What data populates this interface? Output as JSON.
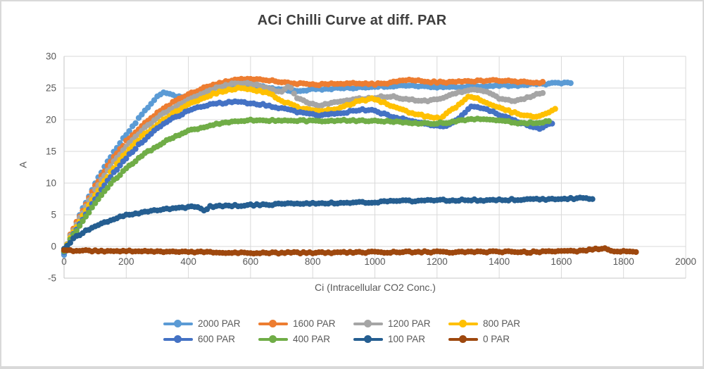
{
  "window": {
    "background": "#ffffff",
    "border_color": "#d9d9d9"
  },
  "chart_data": {
    "type": "scatter",
    "title": "ACi Chilli Curve at diff. PAR",
    "xlabel": "Ci (Intracellular CO2 Conc.)",
    "ylabel": "A",
    "xlim": [
      0,
      2000
    ],
    "ylim": [
      -5,
      30
    ],
    "x_ticks": [
      0,
      200,
      400,
      600,
      800,
      1000,
      1200,
      1400,
      1600,
      1800,
      2000
    ],
    "y_ticks": [
      -5,
      0,
      5,
      10,
      15,
      20,
      25,
      30
    ],
    "grid": true,
    "legend_position": "bottom",
    "gridline_color": "#d9d9d9",
    "axis_line_color": "#c6c6c6",
    "tick_label_color": "#595959",
    "title_color": "#3f3f3f",
    "series": [
      {
        "name": "2000 PAR",
        "color": "#5B9BD5",
        "points": [
          [
            0,
            -1.2
          ],
          [
            20,
            1.5
          ],
          [
            50,
            5
          ],
          [
            100,
            10
          ],
          [
            150,
            14.2
          ],
          [
            200,
            17.7
          ],
          [
            250,
            20.8
          ],
          [
            280,
            22.6
          ],
          [
            300,
            23.6
          ],
          [
            320,
            24.2
          ],
          [
            345,
            23.9
          ],
          [
            370,
            23.6
          ],
          [
            400,
            23.8
          ],
          [
            440,
            24.4
          ],
          [
            480,
            24.9
          ],
          [
            520,
            25.2
          ],
          [
            560,
            25.5
          ],
          [
            620,
            25.3
          ],
          [
            680,
            24.9
          ],
          [
            740,
            24.5
          ],
          [
            800,
            24.8
          ],
          [
            860,
            24.9
          ],
          [
            920,
            25.0
          ],
          [
            980,
            25.1
          ],
          [
            1040,
            25.3
          ],
          [
            1100,
            25.4
          ],
          [
            1160,
            25.2
          ],
          [
            1220,
            25.1
          ],
          [
            1280,
            25.2
          ],
          [
            1340,
            25.3
          ],
          [
            1400,
            25.4
          ],
          [
            1460,
            25.4
          ],
          [
            1520,
            25.6
          ],
          [
            1570,
            25.7
          ],
          [
            1630,
            25.8
          ]
        ]
      },
      {
        "name": "1600 PAR",
        "color": "#ED7D31",
        "points": [
          [
            0,
            -0.8
          ],
          [
            20,
            1.8
          ],
          [
            50,
            4.8
          ],
          [
            100,
            9.5
          ],
          [
            150,
            13.5
          ],
          [
            200,
            16.6
          ],
          [
            250,
            19.1
          ],
          [
            300,
            21.1
          ],
          [
            350,
            22.7
          ],
          [
            400,
            24.0
          ],
          [
            450,
            25.0
          ],
          [
            500,
            25.8
          ],
          [
            550,
            26.3
          ],
          [
            600,
            26.5
          ],
          [
            650,
            26.3
          ],
          [
            700,
            26.0
          ],
          [
            750,
            25.7
          ],
          [
            800,
            25.5
          ],
          [
            850,
            25.6
          ],
          [
            900,
            25.7
          ],
          [
            950,
            25.7
          ],
          [
            1000,
            25.6
          ],
          [
            1050,
            25.8
          ],
          [
            1110,
            26.4
          ],
          [
            1160,
            26.0
          ],
          [
            1220,
            25.9
          ],
          [
            1280,
            26.0
          ],
          [
            1340,
            26.1
          ],
          [
            1400,
            26.2
          ],
          [
            1460,
            26.0
          ],
          [
            1510,
            25.8
          ],
          [
            1545,
            25.9
          ]
        ]
      },
      {
        "name": "1200 PAR",
        "color": "#A5A5A5",
        "points": [
          [
            0,
            -0.8
          ],
          [
            20,
            1.6
          ],
          [
            50,
            4.5
          ],
          [
            100,
            9.0
          ],
          [
            150,
            12.8
          ],
          [
            200,
            15.8
          ],
          [
            250,
            18.3
          ],
          [
            300,
            20.3
          ],
          [
            350,
            21.9
          ],
          [
            400,
            23.2
          ],
          [
            450,
            24.3
          ],
          [
            500,
            25.2
          ],
          [
            550,
            25.7
          ],
          [
            580,
            25.8
          ],
          [
            620,
            25.5
          ],
          [
            660,
            24.9
          ],
          [
            700,
            24.3
          ],
          [
            725,
            25.4
          ],
          [
            750,
            23.4
          ],
          [
            790,
            22.6
          ],
          [
            820,
            22.3
          ],
          [
            860,
            22.6
          ],
          [
            900,
            22.9
          ],
          [
            950,
            23.3
          ],
          [
            1000,
            23.5
          ],
          [
            1050,
            23.7
          ],
          [
            1100,
            23.3
          ],
          [
            1150,
            22.9
          ],
          [
            1200,
            23.2
          ],
          [
            1250,
            24.0
          ],
          [
            1290,
            24.6
          ],
          [
            1320,
            24.7
          ],
          [
            1360,
            24.3
          ],
          [
            1400,
            23.4
          ],
          [
            1440,
            22.9
          ],
          [
            1480,
            23.3
          ],
          [
            1520,
            24.0
          ],
          [
            1545,
            24.3
          ]
        ]
      },
      {
        "name": "800 PAR",
        "color": "#FFC000",
        "points": [
          [
            0,
            -0.8
          ],
          [
            20,
            1.4
          ],
          [
            50,
            4.0
          ],
          [
            100,
            8.2
          ],
          [
            150,
            11.8
          ],
          [
            200,
            14.8
          ],
          [
            250,
            17.3
          ],
          [
            300,
            19.3
          ],
          [
            350,
            21.0
          ],
          [
            400,
            22.4
          ],
          [
            450,
            23.5
          ],
          [
            500,
            24.4
          ],
          [
            550,
            24.9
          ],
          [
            580,
            25.0
          ],
          [
            620,
            24.6
          ],
          [
            660,
            24.2
          ],
          [
            700,
            23.0
          ],
          [
            760,
            21.8
          ],
          [
            820,
            21.3
          ],
          [
            880,
            21.7
          ],
          [
            940,
            22.8
          ],
          [
            990,
            23.3
          ],
          [
            1040,
            22.5
          ],
          [
            1100,
            21.3
          ],
          [
            1160,
            20.6
          ],
          [
            1210,
            20.3
          ],
          [
            1260,
            22.0
          ],
          [
            1300,
            23.6
          ],
          [
            1330,
            23.4
          ],
          [
            1380,
            22.3
          ],
          [
            1440,
            21.2
          ],
          [
            1500,
            20.5
          ],
          [
            1540,
            20.7
          ],
          [
            1580,
            21.6
          ]
        ]
      },
      {
        "name": "600 PAR",
        "color": "#4472C4",
        "points": [
          [
            0,
            -1.0
          ],
          [
            20,
            1.2
          ],
          [
            50,
            3.5
          ],
          [
            100,
            7.5
          ],
          [
            150,
            11.0
          ],
          [
            200,
            14.0
          ],
          [
            250,
            16.5
          ],
          [
            300,
            18.6
          ],
          [
            350,
            20.2
          ],
          [
            400,
            21.4
          ],
          [
            450,
            22.2
          ],
          [
            500,
            22.6
          ],
          [
            550,
            22.8
          ],
          [
            600,
            22.6
          ],
          [
            650,
            22.3
          ],
          [
            700,
            21.8
          ],
          [
            760,
            21.1
          ],
          [
            820,
            20.7
          ],
          [
            880,
            20.9
          ],
          [
            950,
            21.6
          ],
          [
            1000,
            21.4
          ],
          [
            1060,
            20.4
          ],
          [
            1120,
            19.8
          ],
          [
            1180,
            19.2
          ],
          [
            1230,
            18.9
          ],
          [
            1270,
            20.3
          ],
          [
            1310,
            22.2
          ],
          [
            1360,
            21.6
          ],
          [
            1420,
            20.4
          ],
          [
            1480,
            19.3
          ],
          [
            1530,
            18.6
          ],
          [
            1570,
            19.5
          ]
        ]
      },
      {
        "name": "400 PAR",
        "color": "#70AD47",
        "points": [
          [
            0,
            -0.8
          ],
          [
            20,
            1.0
          ],
          [
            50,
            3.2
          ],
          [
            100,
            6.9
          ],
          [
            150,
            9.9
          ],
          [
            200,
            12.3
          ],
          [
            250,
            14.3
          ],
          [
            300,
            15.9
          ],
          [
            350,
            17.2
          ],
          [
            400,
            18.2
          ],
          [
            450,
            18.9
          ],
          [
            500,
            19.4
          ],
          [
            550,
            19.7
          ],
          [
            600,
            19.9
          ],
          [
            700,
            19.9
          ],
          [
            800,
            19.8
          ],
          [
            900,
            19.9
          ],
          [
            1000,
            19.8
          ],
          [
            1100,
            19.6
          ],
          [
            1160,
            19.4
          ],
          [
            1220,
            19.5
          ],
          [
            1280,
            19.9
          ],
          [
            1340,
            20.2
          ],
          [
            1400,
            19.9
          ],
          [
            1460,
            19.5
          ],
          [
            1520,
            19.5
          ],
          [
            1560,
            19.7
          ]
        ]
      },
      {
        "name": "100 PAR",
        "color": "#255E91",
        "points": [
          [
            0,
            -0.3
          ],
          [
            30,
            1.2
          ],
          [
            60,
            2.2
          ],
          [
            100,
            3.2
          ],
          [
            150,
            4.2
          ],
          [
            200,
            4.9
          ],
          [
            250,
            5.4
          ],
          [
            300,
            5.8
          ],
          [
            350,
            6.0
          ],
          [
            400,
            6.2
          ],
          [
            430,
            6.3
          ],
          [
            455,
            5.5
          ],
          [
            470,
            6.3
          ],
          [
            520,
            6.4
          ],
          [
            580,
            6.5
          ],
          [
            650,
            6.6
          ],
          [
            720,
            6.7
          ],
          [
            800,
            6.8
          ],
          [
            900,
            6.9
          ],
          [
            1000,
            7.0
          ],
          [
            1080,
            7.2
          ],
          [
            1150,
            7.2
          ],
          [
            1220,
            7.3
          ],
          [
            1300,
            7.3
          ],
          [
            1380,
            7.3
          ],
          [
            1450,
            7.4
          ],
          [
            1520,
            7.4
          ],
          [
            1600,
            7.5
          ],
          [
            1650,
            7.6
          ],
          [
            1700,
            7.5
          ]
        ]
      },
      {
        "name": "0 PAR",
        "color": "#9E480E",
        "points": [
          [
            0,
            -0.6
          ],
          [
            100,
            -0.7
          ],
          [
            200,
            -0.75
          ],
          [
            300,
            -0.8
          ],
          [
            400,
            -0.85
          ],
          [
            500,
            -1.0
          ],
          [
            600,
            -1.05
          ],
          [
            700,
            -1.0
          ],
          [
            800,
            -1.0
          ],
          [
            900,
            -0.95
          ],
          [
            1000,
            -0.9
          ],
          [
            1100,
            -0.9
          ],
          [
            1200,
            -0.85
          ],
          [
            1300,
            -0.9
          ],
          [
            1400,
            -0.85
          ],
          [
            1500,
            -0.9
          ],
          [
            1550,
            -0.8
          ],
          [
            1600,
            -0.75
          ],
          [
            1650,
            -0.7
          ],
          [
            1700,
            -0.45
          ],
          [
            1740,
            -0.35
          ],
          [
            1780,
            -0.8
          ],
          [
            1840,
            -0.9
          ]
        ]
      }
    ]
  }
}
